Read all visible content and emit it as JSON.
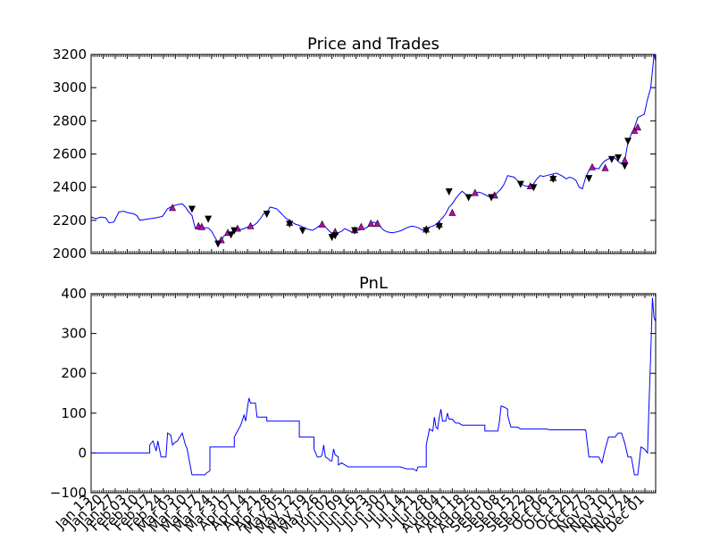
{
  "chart_data": [
    {
      "type": "line",
      "title": "Price and Trades",
      "xlabel": "",
      "ylabel": "",
      "ylim": [
        2000,
        3200
      ],
      "yticks": [
        2000,
        2200,
        2400,
        2600,
        2800,
        3000,
        3200
      ],
      "grid": false,
      "line_color": "#0000ff",
      "buy_color": "#bf00bf",
      "sell_color": "#000000",
      "price": [
        [
          0,
          2220
        ],
        [
          3,
          2210
        ],
        [
          6,
          2220
        ],
        [
          9,
          2215
        ],
        [
          11,
          2185
        ],
        [
          14,
          2190
        ],
        [
          17,
          2250
        ],
        [
          20,
          2255
        ],
        [
          23,
          2245
        ],
        [
          26,
          2240
        ],
        [
          28,
          2230
        ],
        [
          30,
          2200
        ],
        [
          33,
          2205
        ],
        [
          36,
          2210
        ],
        [
          40,
          2215
        ],
        [
          44,
          2225
        ],
        [
          47,
          2270
        ],
        [
          50,
          2285
        ],
        [
          53,
          2295
        ],
        [
          56,
          2300
        ],
        [
          58,
          2280
        ],
        [
          60,
          2250
        ],
        [
          62,
          2230
        ],
        [
          64,
          2150
        ],
        [
          66,
          2148
        ],
        [
          68,
          2160
        ],
        [
          70,
          2155
        ],
        [
          72,
          2155
        ],
        [
          74,
          2135
        ],
        [
          76,
          2100
        ],
        [
          78,
          2065
        ],
        [
          80,
          2080
        ],
        [
          82,
          2110
        ],
        [
          84,
          2120
        ],
        [
          86,
          2125
        ],
        [
          88,
          2150
        ],
        [
          90,
          2150
        ],
        [
          92,
          2145
        ],
        [
          94,
          2150
        ],
        [
          96,
          2160
        ],
        [
          98,
          2165
        ],
        [
          100,
          2170
        ],
        [
          102,
          2185
        ],
        [
          104,
          2210
        ],
        [
          106,
          2240
        ],
        [
          108,
          2245
        ],
        [
          110,
          2280
        ],
        [
          112,
          2275
        ],
        [
          114,
          2270
        ],
        [
          116,
          2250
        ],
        [
          118,
          2230
        ],
        [
          120,
          2210
        ],
        [
          122,
          2200
        ],
        [
          124,
          2185
        ],
        [
          126,
          2175
        ],
        [
          128,
          2170
        ],
        [
          130,
          2160
        ],
        [
          132,
          2150
        ],
        [
          134,
          2145
        ],
        [
          136,
          2140
        ],
        [
          138,
          2150
        ],
        [
          140,
          2165
        ],
        [
          142,
          2175
        ],
        [
          144,
          2160
        ],
        [
          146,
          2140
        ],
        [
          148,
          2120
        ],
        [
          150,
          2110
        ],
        [
          152,
          2125
        ],
        [
          154,
          2135
        ],
        [
          156,
          2150
        ],
        [
          158,
          2140
        ],
        [
          160,
          2130
        ],
        [
          162,
          2135
        ],
        [
          164,
          2140
        ],
        [
          166,
          2145
        ],
        [
          168,
          2150
        ],
        [
          170,
          2160
        ],
        [
          172,
          2180
        ],
        [
          174,
          2190
        ],
        [
          176,
          2175
        ],
        [
          178,
          2160
        ],
        [
          180,
          2140
        ],
        [
          182,
          2130
        ],
        [
          185,
          2125
        ],
        [
          188,
          2130
        ],
        [
          191,
          2140
        ],
        [
          194,
          2155
        ],
        [
          197,
          2165
        ],
        [
          200,
          2160
        ],
        [
          202,
          2150
        ],
        [
          204,
          2140
        ],
        [
          206,
          2150
        ],
        [
          208,
          2160
        ],
        [
          210,
          2165
        ],
        [
          212,
          2175
        ],
        [
          214,
          2195
        ],
        [
          216,
          2215
        ],
        [
          218,
          2240
        ],
        [
          220,
          2280
        ],
        [
          222,
          2300
        ],
        [
          224,
          2330
        ],
        [
          226,
          2355
        ],
        [
          228,
          2375
        ],
        [
          230,
          2360
        ],
        [
          232,
          2340
        ],
        [
          234,
          2350
        ],
        [
          236,
          2360
        ],
        [
          238,
          2370
        ],
        [
          240,
          2365
        ],
        [
          242,
          2355
        ],
        [
          244,
          2345
        ],
        [
          246,
          2340
        ],
        [
          248,
          2350
        ],
        [
          250,
          2370
        ],
        [
          252,
          2390
        ],
        [
          254,
          2420
        ],
        [
          256,
          2470
        ],
        [
          258,
          2465
        ],
        [
          260,
          2460
        ],
        [
          262,
          2440
        ],
        [
          264,
          2420
        ],
        [
          266,
          2410
        ],
        [
          268,
          2405
        ],
        [
          270,
          2410
        ],
        [
          272,
          2420
        ],
        [
          274,
          2450
        ],
        [
          276,
          2470
        ],
        [
          278,
          2465
        ],
        [
          280,
          2470
        ],
        [
          282,
          2475
        ],
        [
          284,
          2480
        ],
        [
          286,
          2485
        ],
        [
          288,
          2475
        ],
        [
          290,
          2465
        ],
        [
          292,
          2450
        ],
        [
          294,
          2460
        ],
        [
          296,
          2455
        ],
        [
          298,
          2440
        ],
        [
          300,
          2400
        ],
        [
          302,
          2390
        ],
        [
          304,
          2460
        ],
        [
          306,
          2500
        ],
        [
          308,
          2520
        ],
        [
          310,
          2515
        ],
        [
          312,
          2510
        ],
        [
          314,
          2540
        ],
        [
          316,
          2560
        ],
        [
          318,
          2570
        ],
        [
          320,
          2580
        ],
        [
          322,
          2575
        ],
        [
          324,
          2555
        ],
        [
          326,
          2540
        ],
        [
          328,
          2560
        ],
        [
          330,
          2670
        ],
        [
          332,
          2720
        ],
        [
          334,
          2760
        ],
        [
          336,
          2820
        ],
        [
          338,
          2830
        ],
        [
          340,
          2840
        ],
        [
          342,
          2930
        ],
        [
          344,
          3000
        ],
        [
          345,
          3100
        ],
        [
          346,
          3200
        ],
        [
          347,
          3160
        ]
      ],
      "buys": [
        [
          50,
          2275
        ],
        [
          66,
          2165
        ],
        [
          68,
          2160
        ],
        [
          80,
          2080
        ],
        [
          84,
          2125
        ],
        [
          90,
          2150
        ],
        [
          98,
          2165
        ],
        [
          122,
          2185
        ],
        [
          142,
          2175
        ],
        [
          150,
          2130
        ],
        [
          162,
          2140
        ],
        [
          166,
          2160
        ],
        [
          172,
          2180
        ],
        [
          176,
          2180
        ],
        [
          206,
          2145
        ],
        [
          214,
          2175
        ],
        [
          222,
          2245
        ],
        [
          236,
          2365
        ],
        [
          248,
          2350
        ],
        [
          270,
          2405
        ],
        [
          284,
          2455
        ],
        [
          308,
          2520
        ],
        [
          316,
          2515
        ],
        [
          328,
          2560
        ],
        [
          334,
          2740
        ],
        [
          336,
          2760
        ]
      ],
      "sells": [
        [
          62,
          2270
        ],
        [
          72,
          2210
        ],
        [
          78,
          2060
        ],
        [
          86,
          2115
        ],
        [
          88,
          2140
        ],
        [
          108,
          2240
        ],
        [
          122,
          2180
        ],
        [
          130,
          2140
        ],
        [
          148,
          2100
        ],
        [
          150,
          2110
        ],
        [
          162,
          2140
        ],
        [
          206,
          2140
        ],
        [
          214,
          2165
        ],
        [
          220,
          2375
        ],
        [
          232,
          2340
        ],
        [
          246,
          2340
        ],
        [
          264,
          2420
        ],
        [
          272,
          2400
        ],
        [
          284,
          2450
        ],
        [
          306,
          2455
        ],
        [
          320,
          2570
        ],
        [
          324,
          2580
        ],
        [
          328,
          2530
        ],
        [
          330,
          2680
        ]
      ]
    },
    {
      "type": "line",
      "title": "PnL",
      "xlabel": "",
      "ylabel": "",
      "ylim": [
        -100,
        400
      ],
      "yticks": [
        -100,
        0,
        100,
        200,
        300,
        400
      ],
      "grid": false,
      "line_color": "#0000ff",
      "pnl": [
        [
          0,
          0
        ],
        [
          36,
          0
        ],
        [
          36,
          20
        ],
        [
          38,
          30
        ],
        [
          40,
          5
        ],
        [
          41,
          30
        ],
        [
          43,
          -10
        ],
        [
          46,
          -10
        ],
        [
          47,
          50
        ],
        [
          49,
          45
        ],
        [
          50,
          20
        ],
        [
          51,
          25
        ],
        [
          53,
          30
        ],
        [
          56,
          50
        ],
        [
          58,
          20
        ],
        [
          59,
          10
        ],
        [
          62,
          -55
        ],
        [
          65,
          -55
        ],
        [
          68,
          -55
        ],
        [
          70,
          -55
        ],
        [
          71,
          -50
        ],
        [
          73,
          -45
        ],
        [
          73,
          15
        ],
        [
          78,
          15
        ],
        [
          83,
          15
        ],
        [
          88,
          15
        ],
        [
          88,
          40
        ],
        [
          90,
          55
        ],
        [
          92,
          70
        ],
        [
          94,
          95
        ],
        [
          95,
          80
        ],
        [
          96,
          110
        ],
        [
          97,
          138
        ],
        [
          98,
          125
        ],
        [
          100,
          125
        ],
        [
          101,
          125
        ],
        [
          102,
          90
        ],
        [
          104,
          90
        ],
        [
          108,
          90
        ],
        [
          108,
          80
        ],
        [
          112,
          80
        ],
        [
          120,
          80
        ],
        [
          124,
          80
        ],
        [
          128,
          80
        ],
        [
          128,
          40
        ],
        [
          133,
          40
        ],
        [
          137,
          40
        ],
        [
          137,
          10
        ],
        [
          139,
          -10
        ],
        [
          141,
          -10
        ],
        [
          142,
          -5
        ],
        [
          143,
          20
        ],
        [
          144,
          -10
        ],
        [
          146,
          -15
        ],
        [
          147,
          -20
        ],
        [
          148,
          -20
        ],
        [
          149,
          10
        ],
        [
          150,
          -5
        ],
        [
          152,
          -10
        ],
        [
          152,
          -30
        ],
        [
          154,
          -25
        ],
        [
          156,
          -30
        ],
        [
          158,
          -35
        ],
        [
          170,
          -35
        ],
        [
          180,
          -35
        ],
        [
          190,
          -35
        ],
        [
          194,
          -40
        ],
        [
          198,
          -40
        ],
        [
          200,
          -45
        ],
        [
          201,
          -35
        ],
        [
          204,
          -35
        ],
        [
          206,
          -35
        ],
        [
          206,
          20
        ],
        [
          208,
          60
        ],
        [
          210,
          55
        ],
        [
          211,
          90
        ],
        [
          212,
          65
        ],
        [
          213,
          60
        ],
        [
          214,
          90
        ],
        [
          215,
          110
        ],
        [
          216,
          80
        ],
        [
          218,
          80
        ],
        [
          219,
          100
        ],
        [
          220,
          85
        ],
        [
          222,
          85
        ],
        [
          224,
          75
        ],
        [
          226,
          75
        ],
        [
          228,
          70
        ],
        [
          238,
          70
        ],
        [
          242,
          70
        ],
        [
          242,
          55
        ],
        [
          248,
          55
        ],
        [
          250,
          55
        ],
        [
          251,
          80
        ],
        [
          252,
          118
        ],
        [
          254,
          115
        ],
        [
          256,
          110
        ],
        [
          256,
          95
        ],
        [
          258,
          65
        ],
        [
          262,
          65
        ],
        [
          264,
          60
        ],
        [
          270,
          60
        ],
        [
          276,
          60
        ],
        [
          280,
          60
        ],
        [
          282,
          58
        ],
        [
          290,
          58
        ],
        [
          296,
          58
        ],
        [
          300,
          58
        ],
        [
          304,
          58
        ],
        [
          306,
          -10
        ],
        [
          308,
          -10
        ],
        [
          312,
          -10
        ],
        [
          314,
          -25
        ],
        [
          316,
          10
        ],
        [
          318,
          40
        ],
        [
          322,
          40
        ],
        [
          324,
          50
        ],
        [
          326,
          50
        ],
        [
          328,
          25
        ],
        [
          330,
          -10
        ],
        [
          332,
          -10
        ],
        [
          334,
          -55
        ],
        [
          336,
          -55
        ],
        [
          338,
          15
        ],
        [
          340,
          10
        ],
        [
          342,
          0
        ],
        [
          343,
          130
        ],
        [
          344,
          250
        ],
        [
          345,
          390
        ],
        [
          346,
          340
        ],
        [
          347,
          330
        ]
      ]
    }
  ],
  "x_ticks": {
    "labels": [
      "Jan 13",
      "Jan 20",
      "Jan 27",
      "Feb 03",
      "Feb 10",
      "Feb 17",
      "Feb 24",
      "Mar 03",
      "Mar 10",
      "Mar 17",
      "Mar 24",
      "Mar 31",
      "Apr 07",
      "Apr 14",
      "Apr 21",
      "Apr 28",
      "May 05",
      "May 12",
      "May 19",
      "May 26",
      "Jun 02",
      "Jun 09",
      "Jun 16",
      "Jun 23",
      "Jun 30",
      "Jul 07",
      "Jul 14",
      "Jul 21",
      "Jul 28",
      "Aug 04",
      "Aug 11",
      "Aug 18",
      "Aug 25",
      "Sep 01",
      "Sep 08",
      "Sep 15",
      "Sep 22",
      "Sep 29",
      "Oct 06",
      "Oct 13",
      "Oct 20",
      "Oct 27",
      "Nov 03",
      "Nov 10",
      "Nov 17",
      "Nov 24",
      "Dec 01"
    ],
    "first": 0,
    "step": 7.4
  },
  "x_domain": [
    0,
    347
  ]
}
